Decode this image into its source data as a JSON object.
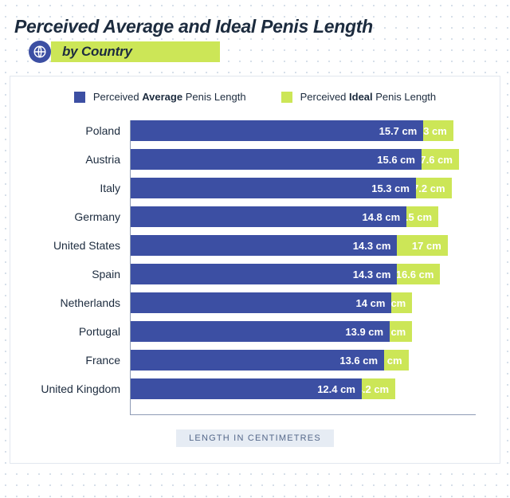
{
  "title": "Perceived Average and Ideal Penis Length",
  "subtitle": "by Country",
  "footer_label": "LENGTH IN CENTIMETRES",
  "unit": "cm",
  "colors": {
    "avg_bar": "#3c4fa3",
    "ideal_bar": "#cce657",
    "avg_text": "#ffffff",
    "ideal_text": "#ffffff",
    "panel_bg": "#ffffff",
    "panel_border": "#e2e7ef",
    "axis": "#8e9bb5",
    "title_text": "#1c2b3e",
    "footer_bg": "#e6ecf4",
    "footer_text": "#55688a",
    "dot_grid": "#c9d4e2"
  },
  "legend": {
    "avg_prefix": "Perceived ",
    "avg_bold": "Average",
    "avg_suffix": " Penis Length",
    "ideal_prefix": "Perceived ",
    "ideal_bold": "Ideal",
    "ideal_suffix": " Penis Length"
  },
  "chart": {
    "type": "bar-horizontal-overlap",
    "x_max": 18.5,
    "rows": [
      {
        "label": "Poland",
        "avg": 15.7,
        "ideal": 17.3
      },
      {
        "label": "Austria",
        "avg": 15.6,
        "ideal": 17.6
      },
      {
        "label": "Italy",
        "avg": 15.3,
        "ideal": 17.2
      },
      {
        "label": "Germany",
        "avg": 14.8,
        "ideal": 16.5
      },
      {
        "label": "United States",
        "avg": 14.3,
        "ideal": 17.0,
        "ideal_display": "17 cm"
      },
      {
        "label": "Spain",
        "avg": 14.3,
        "ideal": 16.6
      },
      {
        "label": "Netherlands",
        "avg": 14.0,
        "ideal": 15.1,
        "avg_display": "14 cm"
      },
      {
        "label": "Portugal",
        "avg": 13.9,
        "ideal": 15.1
      },
      {
        "label": "France",
        "avg": 13.6,
        "ideal": 14.9
      },
      {
        "label": "United Kingdom",
        "avg": 12.4,
        "ideal": 14.2
      }
    ]
  }
}
